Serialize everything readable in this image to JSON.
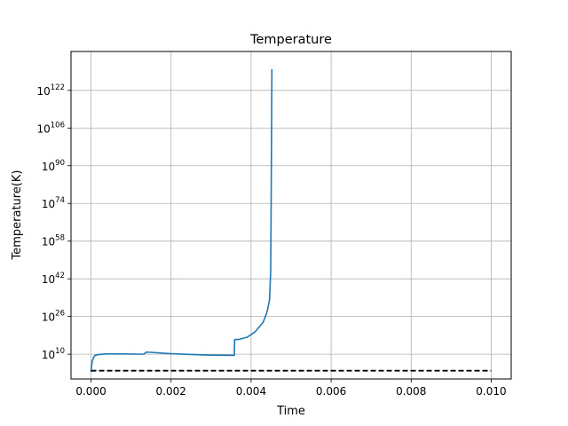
{
  "chart_data": {
    "type": "line",
    "title": "Temperature",
    "xlabel": "Time",
    "ylabel": "Temperature(K)",
    "y_scale": "log",
    "xlim": [
      -0.0005,
      0.0105
    ],
    "ylim_log10": [
      -0.5,
      138.5
    ],
    "grid": true,
    "x_ticks": [
      {
        "value": 0.0,
        "label": "0.000"
      },
      {
        "value": 0.002,
        "label": "0.002"
      },
      {
        "value": 0.004,
        "label": "0.004"
      },
      {
        "value": 0.006,
        "label": "0.006"
      },
      {
        "value": 0.008,
        "label": "0.008"
      },
      {
        "value": 0.01,
        "label": "0.010"
      }
    ],
    "y_ticks": [
      {
        "log10": 10,
        "base": "10",
        "exp": "10"
      },
      {
        "log10": 26,
        "base": "10",
        "exp": "26"
      },
      {
        "log10": 42,
        "base": "10",
        "exp": "42"
      },
      {
        "log10": 58,
        "base": "10",
        "exp": "58"
      },
      {
        "log10": 74,
        "base": "10",
        "exp": "74"
      },
      {
        "log10": 90,
        "base": "10",
        "exp": "90"
      },
      {
        "log10": 106,
        "base": "10",
        "exp": "106"
      },
      {
        "log10": 122,
        "base": "10",
        "exp": "122"
      }
    ],
    "series": [
      {
        "color": "#1f77b4",
        "style": "solid",
        "points": [
          [
            0.0,
            2.5
          ],
          [
            1e-05,
            4.5
          ],
          [
            3e-05,
            7.0
          ],
          [
            6e-05,
            8.5
          ],
          [
            0.0001,
            9.5
          ],
          [
            0.0002,
            9.9
          ],
          [
            0.0004,
            10.1
          ],
          [
            0.0008,
            10.1
          ],
          [
            0.0013,
            10.0
          ],
          [
            0.00132,
            10.0
          ],
          [
            0.00138,
            10.9
          ],
          [
            0.0015,
            10.8
          ],
          [
            0.002,
            10.2
          ],
          [
            0.0025,
            9.9
          ],
          [
            0.003,
            9.6
          ],
          [
            0.00358,
            9.5
          ],
          [
            0.00359,
            16.2
          ],
          [
            0.0037,
            16.3
          ],
          [
            0.0039,
            17.2
          ],
          [
            0.0041,
            19.5
          ],
          [
            0.0043,
            23.5
          ],
          [
            0.0044,
            28.0
          ],
          [
            0.00446,
            33.0
          ],
          [
            0.00449,
            45.0
          ],
          [
            0.0045,
            70.0
          ],
          [
            0.00451,
            100.0
          ],
          [
            0.00452,
            131.0
          ]
        ]
      },
      {
        "color": "#000000",
        "style": "dashed",
        "points": [
          [
            0.0,
            3.0
          ],
          [
            0.01,
            3.0
          ]
        ]
      }
    ]
  }
}
